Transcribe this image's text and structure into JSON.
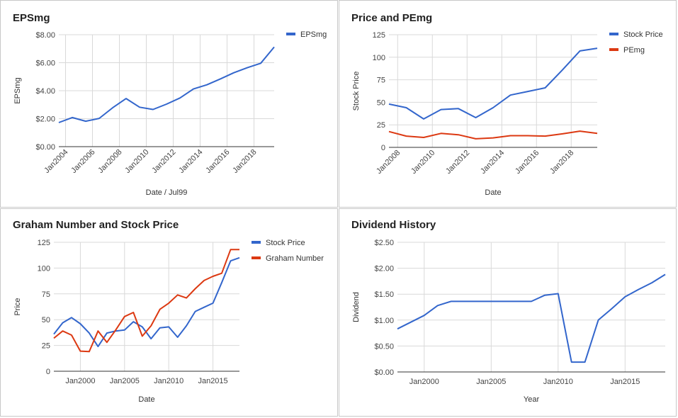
{
  "colors": {
    "blue": "#3366cc",
    "red": "#dc3912"
  },
  "chart_data": [
    {
      "type": "line",
      "title": "EPSmg",
      "xlabel": "Date / Jul99",
      "ylabel": "EPSmg",
      "x": [
        "2003-07",
        "2004-07",
        "2005-07",
        "2006-07",
        "2007-07",
        "2008-07",
        "2009-07",
        "2010-07",
        "2011-07",
        "2012-07",
        "2013-07",
        "2014-07",
        "2015-07",
        "2016-07",
        "2017-07",
        "2018-07",
        "2019-07"
      ],
      "xlim": [
        "2003-07",
        "2019-07"
      ],
      "x_tick_values": [
        "2004-01",
        "2006-01",
        "2008-01",
        "2010-01",
        "2012-01",
        "2014-01",
        "2016-01",
        "2018-01"
      ],
      "x_tick_labels": [
        "Jan2004",
        "Jan2006",
        "Jan2008",
        "Jan2010",
        "Jan2012",
        "Jan2014",
        "Jan2016",
        "Jan2018"
      ],
      "ylim": [
        0,
        8
      ],
      "y_ticks": [
        0,
        2,
        4,
        6,
        8
      ],
      "y_tick_labels": [
        "$0.00",
        "$2.00",
        "$4.00",
        "$6.00",
        "$8.00"
      ],
      "legend_position": "right",
      "grid": true,
      "series": [
        {
          "name": "EPSmg",
          "color": "#3366cc",
          "values": [
            1.72,
            2.08,
            1.82,
            2.02,
            2.78,
            3.44,
            2.82,
            2.66,
            3.04,
            3.48,
            4.12,
            4.42,
            4.84,
            5.28,
            5.64,
            5.96,
            7.12
          ]
        }
      ]
    },
    {
      "type": "line",
      "title": "Price and PEmg",
      "xlabel": "Date",
      "ylabel": "Stock Price",
      "x": [
        "2007-07",
        "2008-07",
        "2009-07",
        "2010-07",
        "2011-07",
        "2012-07",
        "2013-07",
        "2014-07",
        "2015-07",
        "2016-07",
        "2017-07",
        "2018-07",
        "2019-07"
      ],
      "xlim": [
        "2007-07",
        "2019-07"
      ],
      "x_tick_values": [
        "2008-01",
        "2010-01",
        "2012-01",
        "2014-01",
        "2016-01",
        "2018-01"
      ],
      "x_tick_labels": [
        "Jan2008",
        "Jan2010",
        "Jan2012",
        "Jan2014",
        "Jan2016",
        "Jan2018"
      ],
      "ylim": [
        0,
        125
      ],
      "y_ticks": [
        0,
        25,
        50,
        75,
        100,
        125
      ],
      "y_tick_labels": [
        "0",
        "25",
        "50",
        "75",
        "100",
        "125"
      ],
      "legend_position": "right",
      "grid": true,
      "series": [
        {
          "name": "Stock Price",
          "color": "#3366cc",
          "values": [
            48,
            44,
            31.5,
            42,
            43,
            33,
            44,
            58,
            62,
            66,
            86,
            107,
            110
          ]
        },
        {
          "name": "PEmg",
          "color": "#dc3912",
          "values": [
            17.5,
            12.5,
            11,
            15.5,
            14,
            9.5,
            10.5,
            13,
            13,
            12.5,
            15,
            18,
            15.5
          ]
        }
      ]
    },
    {
      "type": "line",
      "title": "Graham Number and Stock Price",
      "xlabel": "Date",
      "ylabel": "Price",
      "x": [
        1997,
        1998,
        1999,
        2000,
        2001,
        2002,
        2003,
        2004,
        2005,
        2006,
        2007,
        2008,
        2009,
        2010,
        2011,
        2012,
        2013,
        2014,
        2015,
        2016,
        2017,
        2018
      ],
      "xlim": [
        1997,
        2018
      ],
      "x_tick_values": [
        2000,
        2005,
        2010,
        2015
      ],
      "x_tick_labels": [
        "Jan2000",
        "Jan2005",
        "Jan2010",
        "Jan2015"
      ],
      "ylim": [
        0,
        125
      ],
      "y_ticks": [
        0,
        25,
        50,
        75,
        100,
        125
      ],
      "y_tick_labels": [
        "0",
        "25",
        "50",
        "75",
        "100",
        "125"
      ],
      "legend_position": "right",
      "grid": true,
      "series": [
        {
          "name": "Stock Price",
          "color": "#3366cc",
          "values": [
            36,
            47,
            52,
            46,
            37,
            24,
            37,
            39,
            40,
            48,
            43,
            31.5,
            42,
            43,
            33,
            44,
            58,
            62,
            66,
            86,
            107,
            110
          ]
        },
        {
          "name": "Graham Number",
          "color": "#dc3912",
          "values": [
            32,
            39,
            35,
            19.5,
            19,
            39,
            28,
            40,
            53,
            57,
            34,
            44,
            60,
            66,
            74,
            71,
            80,
            88,
            92,
            95,
            118,
            118
          ]
        }
      ]
    },
    {
      "type": "line",
      "title": "Dividend History",
      "xlabel": "Year",
      "ylabel": "Dividend",
      "x": [
        1998,
        1999,
        2000,
        2001,
        2002,
        2003,
        2004,
        2005,
        2006,
        2007,
        2008,
        2009,
        2010,
        2011,
        2012,
        2013,
        2014,
        2015,
        2016,
        2017,
        2018
      ],
      "xlim": [
        1998,
        2018
      ],
      "x_tick_values": [
        2000,
        2005,
        2010,
        2015
      ],
      "x_tick_labels": [
        "Jan2000",
        "Jan2005",
        "Jan2010",
        "Jan2015"
      ],
      "ylim": [
        0,
        2.5
      ],
      "y_ticks": [
        0,
        0.5,
        1,
        1.5,
        2,
        2.5
      ],
      "y_tick_labels": [
        "$0.00",
        "$0.50",
        "$1.00",
        "$1.50",
        "$2.00",
        "$2.50"
      ],
      "legend_position": "none",
      "grid": true,
      "series": [
        {
          "name": "",
          "color": "#3366cc",
          "values": [
            0.83,
            0.96,
            1.09,
            1.28,
            1.36,
            1.36,
            1.36,
            1.36,
            1.36,
            1.36,
            1.36,
            1.48,
            1.51,
            0.19,
            0.19,
            1.0,
            1.22,
            1.45,
            1.59,
            1.72,
            1.88
          ]
        }
      ]
    }
  ]
}
